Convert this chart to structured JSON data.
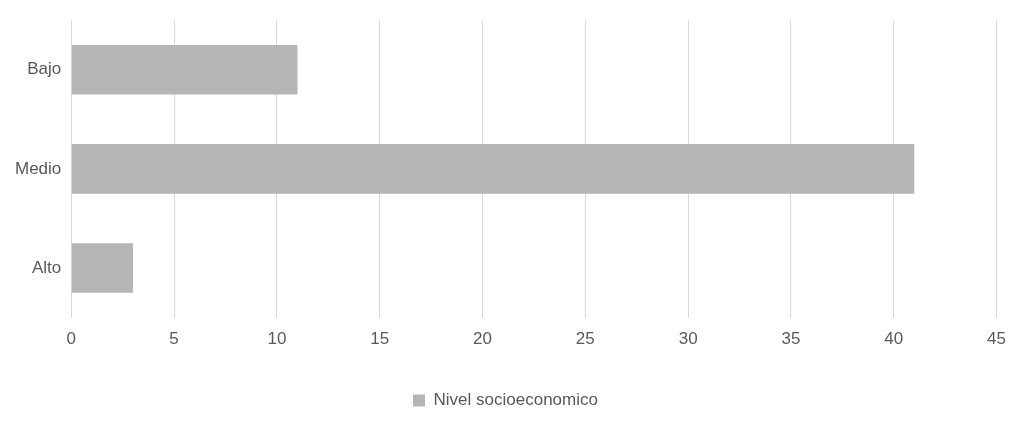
{
  "chart_data": {
    "type": "bar",
    "orientation": "horizontal",
    "categories": [
      "Bajo",
      "Medio",
      "Alto"
    ],
    "series": [
      {
        "name": "Nivel socioeconomico",
        "color": "#b5b5b5",
        "values": [
          11,
          41,
          3
        ]
      }
    ],
    "xlim": [
      0,
      45
    ],
    "xticks": [
      0,
      5,
      10,
      15,
      20,
      25,
      30,
      35,
      40,
      45
    ],
    "grid": "x",
    "legend": "bottom"
  }
}
